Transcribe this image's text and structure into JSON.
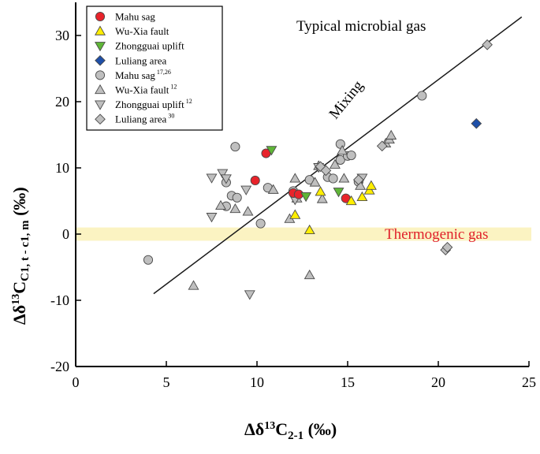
{
  "chart_data": {
    "type": "scatter",
    "title": "",
    "xlabel": {
      "prefix": "Δδ",
      "sup": "13",
      "main": "C",
      "sub": "2-1",
      "unit": " (‰)"
    },
    "ylabel": {
      "prefix": "Δδ",
      "sup": "13",
      "main": "C",
      "sub": "C1, t - c1, m",
      "unit": " (‰)"
    },
    "xlim": [
      0,
      25
    ],
    "ylim": [
      -20,
      35
    ],
    "x_ticks": [
      0,
      5,
      10,
      15,
      20,
      25
    ],
    "y_ticks": [
      -20,
      -10,
      0,
      10,
      20,
      30
    ],
    "grid": false,
    "legend_position": "top-left",
    "annotations": {
      "microbial": {
        "text": "Typical microbial gas",
        "color": "#000000"
      },
      "mixing": {
        "text": "Mixing",
        "color": "#000000"
      },
      "thermogenic": {
        "text": "Thermogenic gas",
        "color": "#e0202a"
      }
    },
    "thermogenic_band": {
      "ymin": -1,
      "ymax": 1,
      "color": "#fbf3c2"
    },
    "mixing_line": {
      "x": [
        4.3,
        24.6
      ],
      "y": [
        -9,
        32.8
      ]
    },
    "series": [
      {
        "name": "Mahu sag",
        "sup": "",
        "marker": "circle",
        "fill": "#e8232b",
        "points": [
          [
            9.9,
            8.1
          ],
          [
            10.5,
            12.2
          ],
          [
            12.0,
            6.2
          ],
          [
            12.3,
            6.0
          ],
          [
            14.9,
            5.4
          ]
        ]
      },
      {
        "name": "Wu-Xia fault",
        "sup": "",
        "marker": "triangle-up",
        "fill": "#ffee00",
        "points": [
          [
            12.1,
            2.9
          ],
          [
            12.9,
            0.6
          ],
          [
            13.5,
            6.4
          ],
          [
            15.2,
            5.0
          ],
          [
            15.8,
            5.6
          ],
          [
            16.2,
            6.6
          ],
          [
            16.3,
            7.3
          ]
        ]
      },
      {
        "name": "Zhongguai uplift",
        "sup": "",
        "marker": "triangle-down",
        "fill": "#5fb637",
        "points": [
          [
            10.8,
            12.7
          ],
          [
            12.7,
            5.7
          ],
          [
            14.5,
            6.4
          ]
        ]
      },
      {
        "name": "Luliang area",
        "sup": "",
        "marker": "diamond",
        "fill": "#1e4fa8",
        "points": [
          [
            22.1,
            16.7
          ]
        ]
      },
      {
        "name": "Mahu sag",
        "sup": "17,26",
        "marker": "circle",
        "fill": "#bfbfbf",
        "points": [
          [
            4.0,
            -3.9
          ],
          [
            8.8,
            13.2
          ],
          [
            8.3,
            4.2
          ],
          [
            8.6,
            5.8
          ],
          [
            8.9,
            5.5
          ],
          [
            8.3,
            7.8
          ],
          [
            10.2,
            1.6
          ],
          [
            10.6,
            7.0
          ],
          [
            12.0,
            6.5
          ],
          [
            12.9,
            8.2
          ],
          [
            13.9,
            8.6
          ],
          [
            14.2,
            8.4
          ],
          [
            14.6,
            13.6
          ],
          [
            14.6,
            11.2
          ],
          [
            15.0,
            11.8
          ],
          [
            15.2,
            11.9
          ],
          [
            15.6,
            7.9
          ],
          [
            19.1,
            20.9
          ]
        ]
      },
      {
        "name": "Wu-Xia fault",
        "sup": "12",
        "marker": "triangle-up",
        "fill": "#bfbfbf",
        "points": [
          [
            6.5,
            -7.8
          ],
          [
            8.0,
            4.3
          ],
          [
            8.8,
            3.8
          ],
          [
            9.5,
            3.4
          ],
          [
            10.9,
            6.7
          ],
          [
            11.8,
            2.3
          ],
          [
            12.1,
            8.4
          ],
          [
            12.2,
            5.4
          ],
          [
            12.9,
            -6.2
          ],
          [
            13.2,
            7.8
          ],
          [
            13.4,
            10.3
          ],
          [
            13.6,
            5.3
          ],
          [
            14.3,
            10.5
          ],
          [
            14.7,
            12.6
          ],
          [
            14.8,
            8.4
          ],
          [
            15.7,
            7.3
          ],
          [
            17.1,
            13.7
          ],
          [
            17.3,
            14.3
          ],
          [
            17.4,
            14.9
          ]
        ]
      },
      {
        "name": "Zhongguai uplift",
        "sup": "12",
        "marker": "triangle-down",
        "fill": "#bfbfbf",
        "points": [
          [
            7.5,
            2.6
          ],
          [
            7.5,
            8.5
          ],
          [
            8.1,
            9.2
          ],
          [
            8.3,
            8.4
          ],
          [
            9.4,
            6.7
          ],
          [
            9.6,
            -9.1
          ],
          [
            12.1,
            5.2
          ],
          [
            13.4,
            10.1
          ],
          [
            15.8,
            8.5
          ]
        ]
      },
      {
        "name": "Luliang area",
        "sup": "30",
        "marker": "diamond",
        "fill": "#bfbfbf",
        "points": [
          [
            13.5,
            10.2
          ],
          [
            13.8,
            9.6
          ],
          [
            15.6,
            8.2
          ],
          [
            16.9,
            13.3
          ],
          [
            20.4,
            -2.4
          ],
          [
            20.5,
            -2.0
          ],
          [
            22.7,
            28.6
          ]
        ]
      }
    ]
  }
}
